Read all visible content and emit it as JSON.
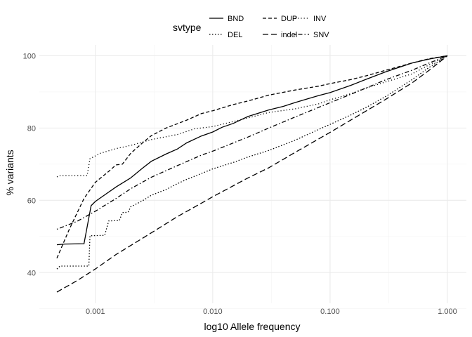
{
  "chart_data": {
    "type": "line",
    "title": "",
    "xlabel": "log10 Allele frequency",
    "ylabel": "% variants",
    "x_scale": "log10",
    "xlim": [
      0.00047,
      1.0
    ],
    "ylim": [
      31.5,
      103
    ],
    "x_ticks": [
      {
        "value": 0.001,
        "label": "0.001"
      },
      {
        "value": 0.01,
        "label": "0.010"
      },
      {
        "value": 0.1,
        "label": "0.100"
      },
      {
        "value": 1.0,
        "label": "1.000"
      }
    ],
    "y_ticks": [
      {
        "value": 40,
        "label": "40"
      },
      {
        "value": 60,
        "label": "60"
      },
      {
        "value": 80,
        "label": "80"
      },
      {
        "value": 100,
        "label": "100"
      }
    ],
    "grid": true,
    "legend": {
      "title": "svtype",
      "position": "top"
    },
    "series": [
      {
        "name": "BND",
        "dash": "solid",
        "points": [
          [
            0.00047,
            47.7
          ],
          [
            0.00055,
            47.9
          ],
          [
            0.0008,
            48.0
          ],
          [
            0.00092,
            58.5
          ],
          [
            0.001,
            59.7
          ],
          [
            0.0012,
            61.5
          ],
          [
            0.0015,
            63.7
          ],
          [
            0.002,
            66.2
          ],
          [
            0.0025,
            68.8
          ],
          [
            0.003,
            70.8
          ],
          [
            0.004,
            72.8
          ],
          [
            0.005,
            74.2
          ],
          [
            0.006,
            75.9
          ],
          [
            0.008,
            77.8
          ],
          [
            0.01,
            78.9
          ],
          [
            0.012,
            80.2
          ],
          [
            0.015,
            81.3
          ],
          [
            0.02,
            83.2
          ],
          [
            0.03,
            85.0
          ],
          [
            0.04,
            86.0
          ],
          [
            0.05,
            87.0
          ],
          [
            0.06,
            87.8
          ],
          [
            0.08,
            89.0
          ],
          [
            0.1,
            89.8
          ],
          [
            0.15,
            91.8
          ],
          [
            0.2,
            93.4
          ],
          [
            0.3,
            95.6
          ],
          [
            0.5,
            98.0
          ],
          [
            0.7,
            99.1
          ],
          [
            1.0,
            100.0
          ]
        ]
      },
      {
        "name": "DEL",
        "dash": "dotted",
        "points": [
          [
            0.00047,
            41.0
          ],
          [
            0.0005,
            41.8
          ],
          [
            0.00088,
            41.8
          ],
          [
            0.0009,
            50.2
          ],
          [
            0.0012,
            50.3
          ],
          [
            0.0013,
            54.3
          ],
          [
            0.0016,
            54.4
          ],
          [
            0.0017,
            56.6
          ],
          [
            0.0019,
            56.7
          ],
          [
            0.002,
            58.2
          ],
          [
            0.0025,
            59.8
          ],
          [
            0.003,
            61.4
          ],
          [
            0.004,
            63.0
          ],
          [
            0.005,
            64.6
          ],
          [
            0.006,
            65.8
          ],
          [
            0.008,
            67.4
          ],
          [
            0.01,
            68.7
          ],
          [
            0.015,
            70.5
          ],
          [
            0.02,
            72.0
          ],
          [
            0.03,
            73.8
          ],
          [
            0.05,
            76.6
          ],
          [
            0.08,
            79.6
          ],
          [
            0.1,
            81.0
          ],
          [
            0.15,
            83.6
          ],
          [
            0.2,
            85.6
          ],
          [
            0.3,
            88.8
          ],
          [
            0.5,
            93.4
          ],
          [
            0.7,
            96.8
          ],
          [
            1.0,
            100.0
          ]
        ]
      },
      {
        "name": "DUP",
        "dash": "dashed",
        "points": [
          [
            0.00047,
            44.0
          ],
          [
            0.0006,
            52.0
          ],
          [
            0.0008,
            60.5
          ],
          [
            0.001,
            65.0
          ],
          [
            0.0013,
            68.0
          ],
          [
            0.0015,
            69.8
          ],
          [
            0.0017,
            70.0
          ],
          [
            0.002,
            73.0
          ],
          [
            0.0025,
            75.8
          ],
          [
            0.003,
            77.9
          ],
          [
            0.004,
            80.0
          ],
          [
            0.005,
            81.2
          ],
          [
            0.006,
            82.2
          ],
          [
            0.008,
            84.0
          ],
          [
            0.01,
            84.8
          ],
          [
            0.015,
            86.5
          ],
          [
            0.02,
            87.5
          ],
          [
            0.03,
            89.1
          ],
          [
            0.05,
            90.5
          ],
          [
            0.08,
            91.6
          ],
          [
            0.1,
            92.3
          ],
          [
            0.15,
            93.4
          ],
          [
            0.2,
            94.4
          ],
          [
            0.3,
            96.0
          ],
          [
            0.5,
            98.0
          ],
          [
            0.7,
            99.2
          ],
          [
            1.0,
            100.0
          ]
        ]
      },
      {
        "name": "indel",
        "dash": "longdash",
        "points": [
          [
            0.00047,
            34.6
          ],
          [
            0.0007,
            37.8
          ],
          [
            0.001,
            41.0
          ],
          [
            0.0015,
            45.0
          ],
          [
            0.002,
            47.5
          ],
          [
            0.003,
            51.0
          ],
          [
            0.005,
            55.5
          ],
          [
            0.008,
            59.2
          ],
          [
            0.01,
            61.0
          ],
          [
            0.02,
            66.2
          ],
          [
            0.03,
            69.0
          ],
          [
            0.05,
            73.2
          ],
          [
            0.1,
            78.8
          ],
          [
            0.2,
            84.6
          ],
          [
            0.3,
            88.0
          ],
          [
            0.5,
            92.5
          ],
          [
            0.7,
            96.0
          ],
          [
            1.0,
            100.0
          ]
        ]
      },
      {
        "name": "INV",
        "dash": "fine-dotted",
        "points": [
          [
            0.00047,
            66.5
          ],
          [
            0.0005,
            66.8
          ],
          [
            0.00085,
            66.8
          ],
          [
            0.0009,
            71.5
          ],
          [
            0.0011,
            73.0
          ],
          [
            0.0015,
            74.3
          ],
          [
            0.002,
            75.2
          ],
          [
            0.003,
            76.8
          ],
          [
            0.005,
            78.2
          ],
          [
            0.007,
            79.8
          ],
          [
            0.01,
            80.4
          ],
          [
            0.015,
            81.8
          ],
          [
            0.02,
            82.8
          ],
          [
            0.03,
            84.3
          ],
          [
            0.05,
            85.3
          ],
          [
            0.08,
            86.7
          ],
          [
            0.1,
            87.8
          ],
          [
            0.15,
            89.5
          ],
          [
            0.2,
            91.0
          ],
          [
            0.3,
            92.8
          ],
          [
            0.5,
            95.0
          ],
          [
            0.7,
            97.5
          ],
          [
            1.0,
            100.0
          ]
        ]
      },
      {
        "name": "SNV",
        "dash": "dotdash",
        "points": [
          [
            0.00047,
            52.0
          ],
          [
            0.0007,
            54.2
          ],
          [
            0.001,
            57.0
          ],
          [
            0.0015,
            60.5
          ],
          [
            0.002,
            63.2
          ],
          [
            0.003,
            66.4
          ],
          [
            0.005,
            69.6
          ],
          [
            0.008,
            72.5
          ],
          [
            0.01,
            73.6
          ],
          [
            0.02,
            77.5
          ],
          [
            0.03,
            80.0
          ],
          [
            0.05,
            83.0
          ],
          [
            0.1,
            87.0
          ],
          [
            0.2,
            91.0
          ],
          [
            0.3,
            93.4
          ],
          [
            0.5,
            96.0
          ],
          [
            0.7,
            98.0
          ],
          [
            1.0,
            100.0
          ]
        ]
      }
    ]
  }
}
